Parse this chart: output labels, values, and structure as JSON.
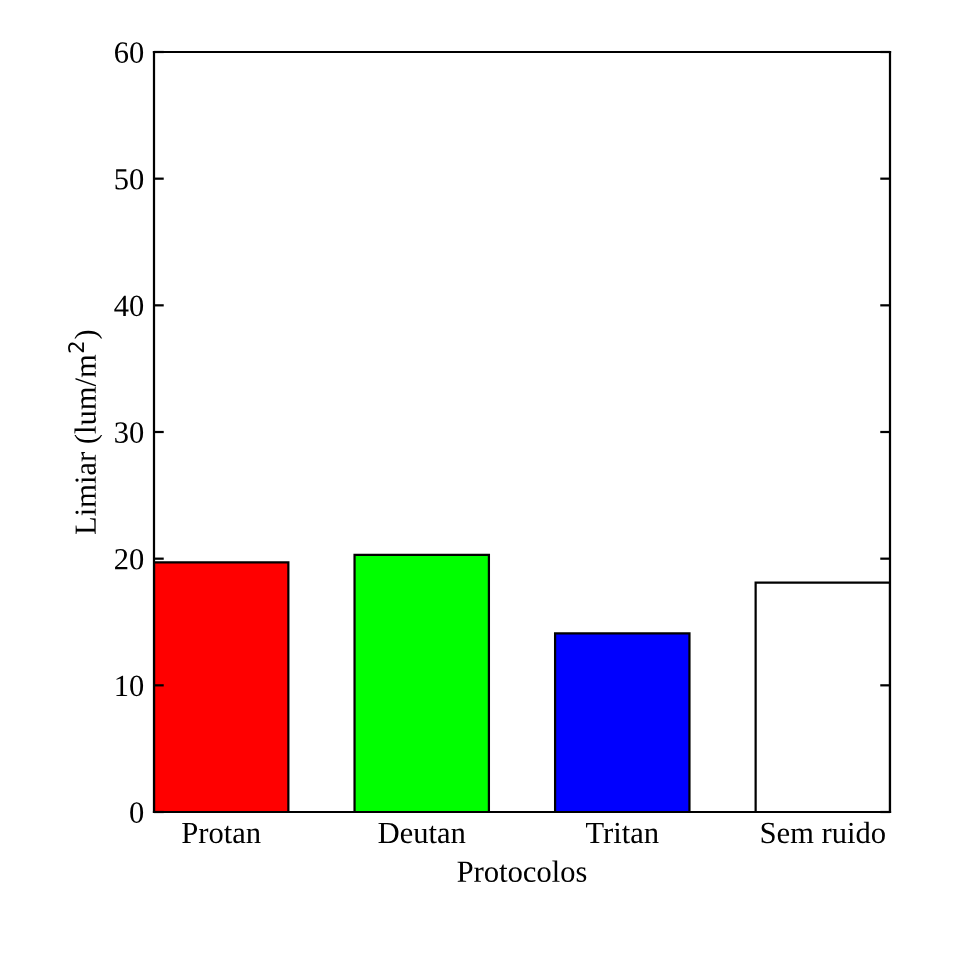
{
  "chart_data": {
    "type": "bar",
    "xlabel": "Protocolos",
    "ylabel": "Limiar (lum/m$^{2}$)",
    "categories": [
      "Protan",
      "Deutan",
      "Tritan",
      "Sem ruido"
    ],
    "values": [
      19.7,
      20.3,
      14.1,
      18.1
    ],
    "colors": [
      "#ff0000",
      "#00ff00",
      "#0000ff",
      "#ffffff"
    ],
    "ylim": [
      0,
      60
    ],
    "yticks": [
      0,
      10,
      20,
      30,
      40,
      50,
      60
    ],
    "grid": false,
    "legend": false
  }
}
